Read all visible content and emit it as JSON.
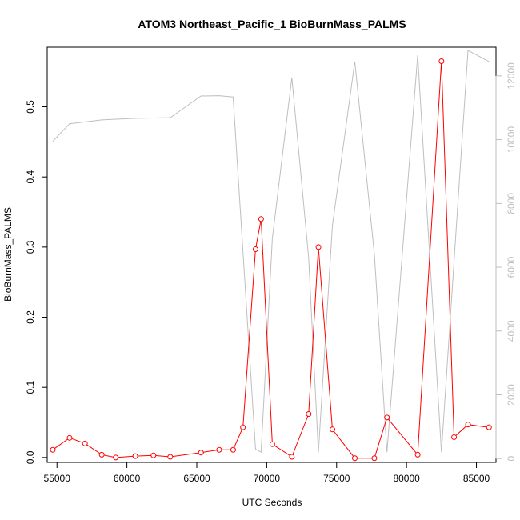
{
  "chart_data": {
    "type": "line",
    "title": "ATOM3 Northeast_Pacific_1 BioBurnMass_PALMS",
    "xlabel": "UTC Seconds",
    "ylabel": "BioBurnMass_PALMS",
    "xlim": [
      54300,
      86400
    ],
    "ylim": [
      -0.007,
      0.585
    ],
    "y2lim": [
      -120,
      12900
    ],
    "x_ticks": [
      55000,
      60000,
      65000,
      70000,
      75000,
      80000,
      85000
    ],
    "y_ticks": [
      0.0,
      0.1,
      0.2,
      0.3,
      0.4,
      0.5
    ],
    "y2_ticks": [
      0,
      2000,
      4000,
      6000,
      8000,
      10000,
      12000
    ],
    "grid": false,
    "series": [
      {
        "axis": "left",
        "color": "#ff0000",
        "style": "line-with-open-circles",
        "x": [
          54700,
          55900,
          57000,
          58200,
          59200,
          60600,
          61900,
          63100,
          65300,
          66600,
          67600,
          68300,
          69200,
          69600,
          70400,
          71800,
          73000,
          73700,
          74700,
          76300,
          77700,
          78600,
          80800,
          82500,
          83400,
          84400,
          85900
        ],
        "y": [
          0.011,
          0.028,
          0.02,
          0.004,
          0.0,
          0.002,
          0.003,
          0.001,
          0.007,
          0.011,
          0.011,
          0.043,
          0.297,
          0.34,
          0.019,
          0.001,
          0.062,
          0.3,
          0.04,
          -0.001,
          -0.001,
          0.057,
          0.004,
          0.565,
          0.029,
          0.047,
          0.043
        ]
      },
      {
        "axis": "right",
        "color": "#bebebe",
        "style": "line",
        "x": [
          54700,
          55900,
          58200,
          60600,
          63100,
          65300,
          66600,
          67600,
          69200,
          69600,
          70400,
          71800,
          73000,
          73700,
          74700,
          76300,
          77700,
          78600,
          80800,
          82500,
          84400,
          85900
        ],
        "y": [
          9950,
          10500,
          10620,
          10670,
          10690,
          11370,
          11380,
          11340,
          300,
          200,
          6900,
          11950,
          6300,
          200,
          7300,
          12450,
          6400,
          200,
          12650,
          200,
          12800,
          12450
        ]
      }
    ]
  }
}
